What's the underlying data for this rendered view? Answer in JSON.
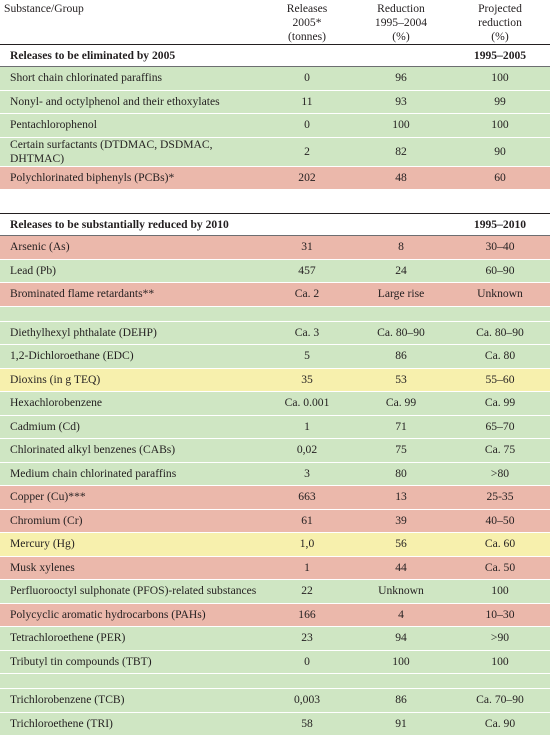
{
  "header": {
    "substance": "Substance/Group",
    "releases_l1": "Releases",
    "releases_l2": "2005*",
    "releases_l3": "(tonnes)",
    "reduction_l1": "Reduction",
    "reduction_l2": "1995–2004",
    "reduction_l3": "(%)",
    "projected_l1": "Projected",
    "projected_l2": "reduction",
    "projected_l3": "(%)"
  },
  "sections": [
    {
      "title": "Releases to be eliminated by 2005",
      "period": "1995–2005",
      "rows": [
        {
          "name": "Short chain chlorinated paraffins",
          "releases": "0",
          "reduction": "96",
          "projected": "100",
          "color": "#cfe6c3"
        },
        {
          "name": "Nonyl- and octylphenol and their ethoxylates",
          "releases": "11",
          "reduction": "93",
          "projected": "99",
          "color": "#cfe6c3"
        },
        {
          "name": "Pentachlorophenol",
          "releases": "0",
          "reduction": "100",
          "projected": "100",
          "color": "#cfe6c3"
        },
        {
          "name": "Certain surfactants (DTDMAC, DSDMAC, DHTMAC)",
          "releases": "2",
          "reduction": "82",
          "projected": "90",
          "color": "#cfe6c3"
        },
        {
          "name": "Polychlorinated biphenyls (PCBs)*",
          "releases": "202",
          "reduction": "48",
          "projected": "60",
          "color": "#ebb8ab"
        }
      ]
    },
    {
      "title": "Releases to be substantially reduced by 2010",
      "period": "1995–2010",
      "rows": [
        {
          "name": "Arsenic (As)",
          "releases": "31",
          "reduction": "8",
          "projected": "30–40",
          "color": "#ebb8ab"
        },
        {
          "name": "Lead (Pb)",
          "releases": "457",
          "reduction": "24",
          "projected": "60–90",
          "color": "#cfe6c3"
        },
        {
          "name": "Brominated flame retardants**",
          "releases": "Ca. 2",
          "reduction": "Large rise",
          "projected": "Unknown",
          "color": "#ebb8ab"
        },
        {
          "name": "Diethylhexyl phthalate (DEHP)",
          "releases": "Ca. 3",
          "reduction": "Ca. 80–90",
          "projected": "Ca. 80–90",
          "color": "#cfe6c3"
        },
        {
          "name": "1,2-Dichloroethane (EDC)",
          "releases": "5",
          "reduction": "86",
          "projected": "Ca. 80",
          "color": "#cfe6c3"
        },
        {
          "name": "Dioxins (in g TEQ)",
          "releases": "35",
          "reduction": "53",
          "projected": "55–60",
          "color": "#f7f0ad"
        },
        {
          "name": "Hexachlorobenzene",
          "releases": "Ca. 0.001",
          "reduction": "Ca. 99",
          "projected": "Ca. 99",
          "color": "#cfe6c3"
        },
        {
          "name": "Cadmium (Cd)",
          "releases": "1",
          "reduction": "71",
          "projected": "65–70",
          "color": "#cfe6c3"
        },
        {
          "name": "Chlorinated alkyl benzenes (CABs)",
          "releases": "0,02",
          "reduction": "75",
          "projected": "Ca. 75",
          "color": "#cfe6c3"
        },
        {
          "name": "Medium chain chlorinated paraffins",
          "releases": "3",
          "reduction": "80",
          "projected": ">80",
          "color": "#cfe6c3"
        },
        {
          "name": "Copper (Cu)***",
          "releases": "663",
          "reduction": "13",
          "projected": "25-35",
          "color": "#ebb8ab"
        },
        {
          "name": "Chromium (Cr)",
          "releases": "61",
          "reduction": "39",
          "projected": "40–50",
          "color": "#ebb8ab"
        },
        {
          "name": "Mercury (Hg)",
          "releases": "1,0",
          "reduction": "56",
          "projected": "Ca. 60",
          "color": "#f7f0ad"
        },
        {
          "name": "Musk xylenes",
          "releases": "1",
          "reduction": "44",
          "projected": "Ca. 50",
          "color": "#ebb8ab"
        },
        {
          "name": "Perfluorooctyl sulphonate (PFOS)-related substances",
          "releases": "22",
          "reduction": "Unknown",
          "projected": "100",
          "color": "#cfe6c3"
        },
        {
          "name": "Polycyclic aromatic hydrocarbons (PAHs)",
          "releases": "166",
          "reduction": "4",
          "projected": "10–30",
          "color": "#ebb8ab"
        },
        {
          "name": "Tetrachloroethene (PER)",
          "releases": "23",
          "reduction": "94",
          "projected": ">90",
          "color": "#cfe6c3"
        },
        {
          "name": "Tributyl tin compounds (TBT)",
          "releases": "0",
          "reduction": "100",
          "projected": "100",
          "color": "#cfe6c3"
        },
        {
          "name": "Trichlorobenzene (TCB)",
          "releases": "0,003",
          "reduction": "86",
          "projected": "Ca. 70–90",
          "color": "#cfe6c3"
        },
        {
          "name": "Trichloroethene (TRI)",
          "releases": "58",
          "reduction": "91",
          "projected": "Ca. 90",
          "color": "#cfe6c3"
        }
      ]
    }
  ]
}
